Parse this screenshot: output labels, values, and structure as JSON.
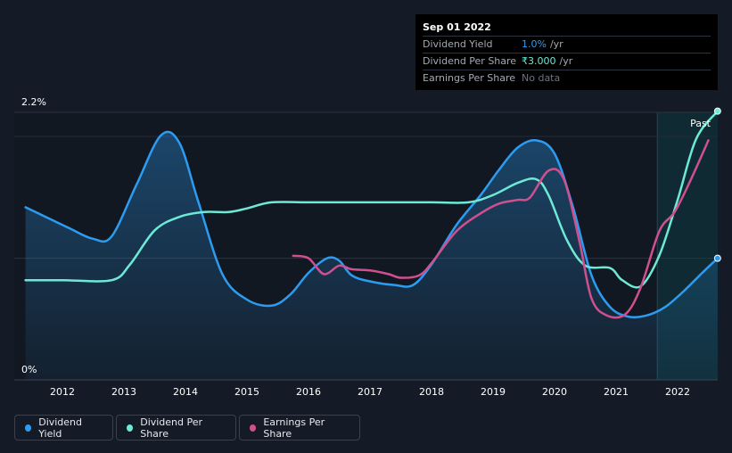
{
  "tooltip": {
    "date": "Sep 01 2022",
    "rows": [
      {
        "label": "Dividend Yield",
        "value": "1.0%",
        "unit": "/yr"
      },
      {
        "label": "Dividend Per Share",
        "value": "₹3.000",
        "unit": "/yr"
      },
      {
        "label": "Earnings Per Share",
        "value": "No data"
      }
    ]
  },
  "legend": [
    {
      "label": "Dividend Yield",
      "color": "#2d9cf0"
    },
    {
      "label": "Dividend Per Share",
      "color": "#6ee9d6"
    },
    {
      "label": "Earnings Per Share",
      "color": "#d0508f"
    }
  ],
  "chart_data": {
    "type": "line",
    "title": "",
    "xlabel": "",
    "ylabel": "",
    "y_tick_labels": [
      "2.2%",
      "0%"
    ],
    "ylim": [
      0,
      2.2
    ],
    "xlim": [
      2011.3,
      2022.65
    ],
    "x_ticks": [
      2012,
      2013,
      2014,
      2015,
      2016,
      2017,
      2018,
      2019,
      2020,
      2021,
      2022
    ],
    "past_label": "Past",
    "past_region_start": 2021.67,
    "series": [
      {
        "name": "Dividend Yield",
        "color": "#2d9cf0",
        "area": true,
        "points": [
          [
            2011.4,
            1.42
          ],
          [
            2012.1,
            1.25
          ],
          [
            2012.5,
            1.16
          ],
          [
            2012.8,
            1.18
          ],
          [
            2013.2,
            1.6
          ],
          [
            2013.6,
            2.01
          ],
          [
            2013.9,
            1.95
          ],
          [
            2014.2,
            1.48
          ],
          [
            2014.6,
            0.87
          ],
          [
            2015.0,
            0.66
          ],
          [
            2015.4,
            0.61
          ],
          [
            2015.7,
            0.7
          ],
          [
            2016.0,
            0.88
          ],
          [
            2016.3,
            1.0
          ],
          [
            2016.5,
            0.98
          ],
          [
            2016.7,
            0.86
          ],
          [
            2017.0,
            0.81
          ],
          [
            2017.4,
            0.78
          ],
          [
            2017.7,
            0.78
          ],
          [
            2018.0,
            0.95
          ],
          [
            2018.4,
            1.27
          ],
          [
            2018.8,
            1.52
          ],
          [
            2019.1,
            1.73
          ],
          [
            2019.4,
            1.91
          ],
          [
            2019.7,
            1.97
          ],
          [
            2020.0,
            1.86
          ],
          [
            2020.3,
            1.42
          ],
          [
            2020.6,
            0.86
          ],
          [
            2020.9,
            0.6
          ],
          [
            2021.2,
            0.52
          ],
          [
            2021.5,
            0.53
          ],
          [
            2021.8,
            0.6
          ],
          [
            2022.1,
            0.73
          ],
          [
            2022.4,
            0.88
          ],
          [
            2022.65,
            1.0
          ]
        ]
      },
      {
        "name": "Dividend Per Share",
        "color": "#6ee9d6",
        "area": false,
        "points": [
          [
            2011.4,
            0.82
          ],
          [
            2012.0,
            0.82
          ],
          [
            2012.8,
            0.82
          ],
          [
            2013.1,
            0.95
          ],
          [
            2013.5,
            1.23
          ],
          [
            2013.9,
            1.34
          ],
          [
            2014.3,
            1.38
          ],
          [
            2014.7,
            1.38
          ],
          [
            2015.0,
            1.41
          ],
          [
            2015.4,
            1.46
          ],
          [
            2016.0,
            1.46
          ],
          [
            2017.0,
            1.46
          ],
          [
            2018.0,
            1.46
          ],
          [
            2018.6,
            1.46
          ],
          [
            2019.0,
            1.52
          ],
          [
            2019.4,
            1.62
          ],
          [
            2019.7,
            1.65
          ],
          [
            2019.9,
            1.52
          ],
          [
            2020.2,
            1.15
          ],
          [
            2020.5,
            0.94
          ],
          [
            2020.9,
            0.92
          ],
          [
            2021.1,
            0.82
          ],
          [
            2021.4,
            0.77
          ],
          [
            2021.7,
            1.02
          ],
          [
            2022.0,
            1.48
          ],
          [
            2022.3,
            1.98
          ],
          [
            2022.65,
            2.21
          ]
        ]
      },
      {
        "name": "Earnings Per Share",
        "color": "#d0508f",
        "area": false,
        "points": [
          [
            2015.75,
            1.02
          ],
          [
            2016.0,
            1.0
          ],
          [
            2016.25,
            0.87
          ],
          [
            2016.5,
            0.94
          ],
          [
            2016.7,
            0.91
          ],
          [
            2017.0,
            0.9
          ],
          [
            2017.3,
            0.87
          ],
          [
            2017.5,
            0.84
          ],
          [
            2017.8,
            0.86
          ],
          [
            2018.0,
            0.96
          ],
          [
            2018.4,
            1.22
          ],
          [
            2018.8,
            1.37
          ],
          [
            2019.1,
            1.45
          ],
          [
            2019.4,
            1.48
          ],
          [
            2019.6,
            1.5
          ],
          [
            2019.9,
            1.72
          ],
          [
            2020.15,
            1.65
          ],
          [
            2020.4,
            1.15
          ],
          [
            2020.6,
            0.67
          ],
          [
            2020.85,
            0.53
          ],
          [
            2021.15,
            0.54
          ],
          [
            2021.4,
            0.76
          ],
          [
            2021.7,
            1.22
          ],
          [
            2021.95,
            1.38
          ],
          [
            2022.2,
            1.63
          ],
          [
            2022.5,
            1.97
          ]
        ]
      }
    ]
  }
}
